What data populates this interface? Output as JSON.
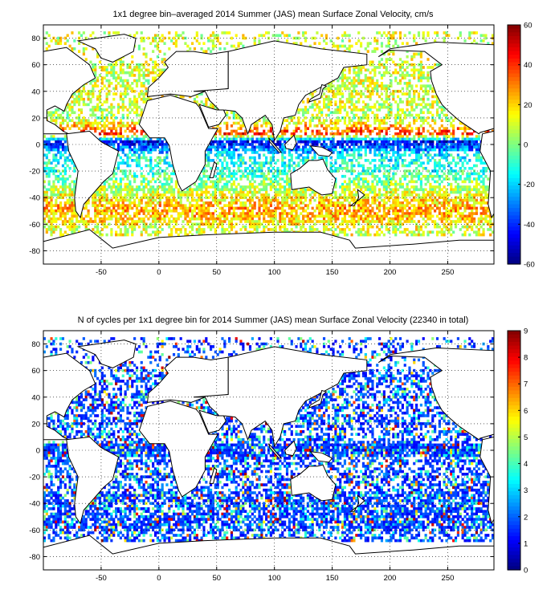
{
  "chart_data": [
    {
      "type": "heatmap",
      "title": "1x1 degree bin–averaged 2014 Summer (JAS) mean Surface Zonal Velocity, cm/s",
      "xlabel": "",
      "ylabel": "",
      "xlim": [
        -100,
        290
      ],
      "ylim": [
        -90,
        90
      ],
      "x_ticks": [
        -50,
        0,
        50,
        100,
        150,
        200,
        250
      ],
      "y_ticks": [
        80,
        60,
        40,
        20,
        0,
        -20,
        -40,
        -60,
        -80
      ],
      "x_tick_labels": [
        "-50",
        "0",
        "50",
        "100",
        "150",
        "200",
        "250"
      ],
      "y_tick_labels": [
        "80",
        "60",
        "40",
        "20",
        "0",
        "-20",
        "-40",
        "-60",
        "-80"
      ],
      "colorbar": {
        "colormap": "jet",
        "range": [
          -60,
          60
        ],
        "ticks": [
          60,
          40,
          20,
          0,
          -20,
          -40,
          -60
        ],
        "tick_labels": [
          "60",
          "40",
          "20",
          "0",
          "-20",
          "-40",
          "-60"
        ]
      },
      "grid": true,
      "zonal_pattern": [
        {
          "lat": 50,
          "value": 10
        },
        {
          "lat": 35,
          "value": 12
        },
        {
          "lat": 20,
          "value": 5
        },
        {
          "lat": 8,
          "value": 40
        },
        {
          "lat": 2,
          "value": -45
        },
        {
          "lat": -10,
          "value": -12
        },
        {
          "lat": -20,
          "value": -10
        },
        {
          "lat": -30,
          "value": 2
        },
        {
          "lat": -40,
          "value": 15
        },
        {
          "lat": -48,
          "value": 25
        },
        {
          "lat": -55,
          "value": 22
        },
        {
          "lat": -62,
          "value": 12
        }
      ]
    },
    {
      "type": "heatmap",
      "title": "N of cycles per 1x1 degree bin for 2014 Summer (JAS) mean Surface Zonal Velocity (22340 in total)",
      "xlabel": "",
      "ylabel": "",
      "xlim": [
        -100,
        290
      ],
      "ylim": [
        -90,
        90
      ],
      "x_ticks": [
        -50,
        0,
        50,
        100,
        150,
        200,
        250
      ],
      "y_ticks": [
        80,
        60,
        40,
        20,
        0,
        -20,
        -40,
        -60,
        -80
      ],
      "x_tick_labels": [
        "-50",
        "0",
        "50",
        "100",
        "150",
        "200",
        "250"
      ],
      "y_tick_labels": [
        "80",
        "60",
        "40",
        "20",
        "0",
        "-20",
        "-40",
        "-60",
        "-80"
      ],
      "colorbar": {
        "colormap": "jet",
        "range": [
          0,
          9
        ],
        "ticks": [
          9,
          8,
          7,
          6,
          5,
          4,
          3,
          2,
          1,
          0
        ],
        "tick_labels": [
          "9",
          "8",
          "7",
          "6",
          "5",
          "4",
          "3",
          "2",
          "1",
          "0"
        ]
      },
      "grid": true,
      "total": 22340,
      "typical_count": 1.5
    }
  ],
  "map": {
    "land": [
      {
        "name": "North America",
        "coords": [
          [
            -100,
            70
          ],
          [
            -80,
            73
          ],
          [
            -60,
            60
          ],
          [
            -55,
            50
          ],
          [
            -65,
            45
          ],
          [
            -75,
            38
          ],
          [
            -80,
            30
          ],
          [
            -82,
            25
          ],
          [
            -90,
            29
          ],
          [
            -97,
            26
          ],
          [
            -97,
            18
          ],
          [
            -90,
            15
          ],
          [
            -83,
            10
          ],
          [
            -78,
            8
          ],
          [
            -100,
            8
          ]
        ]
      },
      {
        "name": "North America West",
        "coords": [
          [
            190,
            66
          ],
          [
            200,
            71
          ],
          [
            230,
            70
          ],
          [
            245,
            60
          ],
          [
            235,
            55
          ],
          [
            236,
            48
          ],
          [
            240,
            38
          ],
          [
            245,
            30
          ],
          [
            252,
            24
          ],
          [
            260,
            18
          ],
          [
            265,
            15
          ],
          [
            277,
            8
          ],
          [
            278,
            9
          ],
          [
            290,
            12
          ],
          [
            290,
            75
          ],
          [
            240,
            77
          ],
          [
            200,
            72
          ]
        ]
      },
      {
        "name": "Greenland",
        "coords": [
          [
            -70,
            78
          ],
          [
            -30,
            83
          ],
          [
            -20,
            80
          ],
          [
            -22,
            70
          ],
          [
            -40,
            62
          ],
          [
            -50,
            65
          ],
          [
            -55,
            72
          ]
        ]
      },
      {
        "name": "South America",
        "coords": [
          [
            -80,
            8
          ],
          [
            -60,
            10
          ],
          [
            -50,
            2
          ],
          [
            -35,
            -5
          ],
          [
            -40,
            -22
          ],
          [
            -48,
            -28
          ],
          [
            -58,
            -38
          ],
          [
            -65,
            -45
          ],
          [
            -68,
            -55
          ],
          [
            -72,
            -50
          ],
          [
            -73,
            -40
          ],
          [
            -70,
            -20
          ],
          [
            -78,
            -5
          ]
        ]
      },
      {
        "name": "South America East Wrap",
        "coords": [
          [
            280,
            8
          ],
          [
            290,
            10
          ],
          [
            290,
            -52
          ],
          [
            288,
            -55
          ],
          [
            285,
            -45
          ],
          [
            287,
            -20
          ],
          [
            278,
            -5
          ]
        ]
      },
      {
        "name": "Europe",
        "coords": [
          [
            -10,
            36
          ],
          [
            -9,
            43
          ],
          [
            0,
            50
          ],
          [
            8,
            58
          ],
          [
            5,
            62
          ],
          [
            15,
            70
          ],
          [
            30,
            70
          ],
          [
            45,
            68
          ],
          [
            60,
            70
          ],
          [
            60,
            42
          ],
          [
            40,
            40
          ],
          [
            28,
            36
          ],
          [
            10,
            38
          ]
        ]
      },
      {
        "name": "Africa",
        "coords": [
          [
            -17,
            15
          ],
          [
            -10,
            33
          ],
          [
            10,
            37
          ],
          [
            32,
            31
          ],
          [
            35,
            28
          ],
          [
            43,
            12
          ],
          [
            51,
            12
          ],
          [
            40,
            -5
          ],
          [
            40,
            -15
          ],
          [
            32,
            -28
          ],
          [
            20,
            -35
          ],
          [
            17,
            -30
          ],
          [
            12,
            -15
          ],
          [
            9,
            -1
          ],
          [
            5,
            5
          ],
          [
            -8,
            5
          ]
        ]
      },
      {
        "name": "Asia",
        "coords": [
          [
            30,
            40
          ],
          [
            60,
            42
          ],
          [
            60,
            70
          ],
          [
            100,
            78
          ],
          [
            140,
            72
          ],
          [
            180,
            68
          ],
          [
            180,
            60
          ],
          [
            160,
            58
          ],
          [
            155,
            50
          ],
          [
            140,
            43
          ],
          [
            127,
            37
          ],
          [
            121,
            30
          ],
          [
            118,
            22
          ],
          [
            108,
            20
          ],
          [
            105,
            10
          ],
          [
            100,
            3
          ],
          [
            98,
            15
          ],
          [
            92,
            22
          ],
          [
            80,
            15
          ],
          [
            77,
            8
          ],
          [
            72,
            20
          ],
          [
            66,
            25
          ],
          [
            57,
            26
          ],
          [
            55,
            23
          ],
          [
            50,
            28
          ],
          [
            44,
            33
          ],
          [
            40,
            40
          ]
        ]
      },
      {
        "name": "Arabia",
        "coords": [
          [
            35,
            30
          ],
          [
            43,
            13
          ],
          [
            52,
            15
          ],
          [
            58,
            22
          ],
          [
            56,
            26
          ],
          [
            50,
            26
          ]
        ]
      },
      {
        "name": "Madagascar",
        "coords": [
          [
            44,
            -25
          ],
          [
            48,
            -13
          ],
          [
            50,
            -15
          ],
          [
            47,
            -25
          ]
        ]
      },
      {
        "name": "Japan",
        "coords": [
          [
            130,
            32
          ],
          [
            140,
            35
          ],
          [
            142,
            42
          ],
          [
            145,
            44
          ],
          [
            141,
            45
          ],
          [
            139,
            38
          ],
          [
            131,
            34
          ]
        ]
      },
      {
        "name": "Borneo",
        "coords": [
          [
            109,
            0
          ],
          [
            117,
            7
          ],
          [
            119,
            1
          ],
          [
            116,
            -4
          ],
          [
            110,
            -3
          ]
        ]
      },
      {
        "name": "Sumatra",
        "coords": [
          [
            95,
            5
          ],
          [
            106,
            -6
          ],
          [
            104,
            -6
          ],
          [
            96,
            2
          ]
        ]
      },
      {
        "name": "New Guinea",
        "coords": [
          [
            131,
            -1
          ],
          [
            141,
            -2
          ],
          [
            150,
            -6
          ],
          [
            147,
            -9
          ],
          [
            138,
            -8
          ]
        ]
      },
      {
        "name": "Australia",
        "coords": [
          [
            114,
            -22
          ],
          [
            122,
            -18
          ],
          [
            130,
            -12
          ],
          [
            137,
            -12
          ],
          [
            142,
            -11
          ],
          [
            146,
            -19
          ],
          [
            153,
            -26
          ],
          [
            150,
            -37
          ],
          [
            141,
            -38
          ],
          [
            135,
            -35
          ],
          [
            130,
            -32
          ],
          [
            115,
            -34
          ]
        ]
      },
      {
        "name": "New Zealand",
        "coords": [
          [
            172,
            -34
          ],
          [
            178,
            -38
          ],
          [
            174,
            -41
          ],
          [
            166,
            -46
          ],
          [
            169,
            -46
          ],
          [
            173,
            -40
          ]
        ]
      },
      {
        "name": "Antarctica",
        "coords": [
          [
            -100,
            -73
          ],
          [
            -60,
            -64
          ],
          [
            -40,
            -78
          ],
          [
            0,
            -70
          ],
          [
            40,
            -68
          ],
          [
            70,
            -67
          ],
          [
            100,
            -66
          ],
          [
            140,
            -66
          ],
          [
            165,
            -72
          ],
          [
            170,
            -78
          ],
          [
            220,
            -75
          ],
          [
            260,
            -72
          ],
          [
            290,
            -72
          ],
          [
            290,
            -90
          ],
          [
            -100,
            -90
          ]
        ]
      }
    ]
  }
}
